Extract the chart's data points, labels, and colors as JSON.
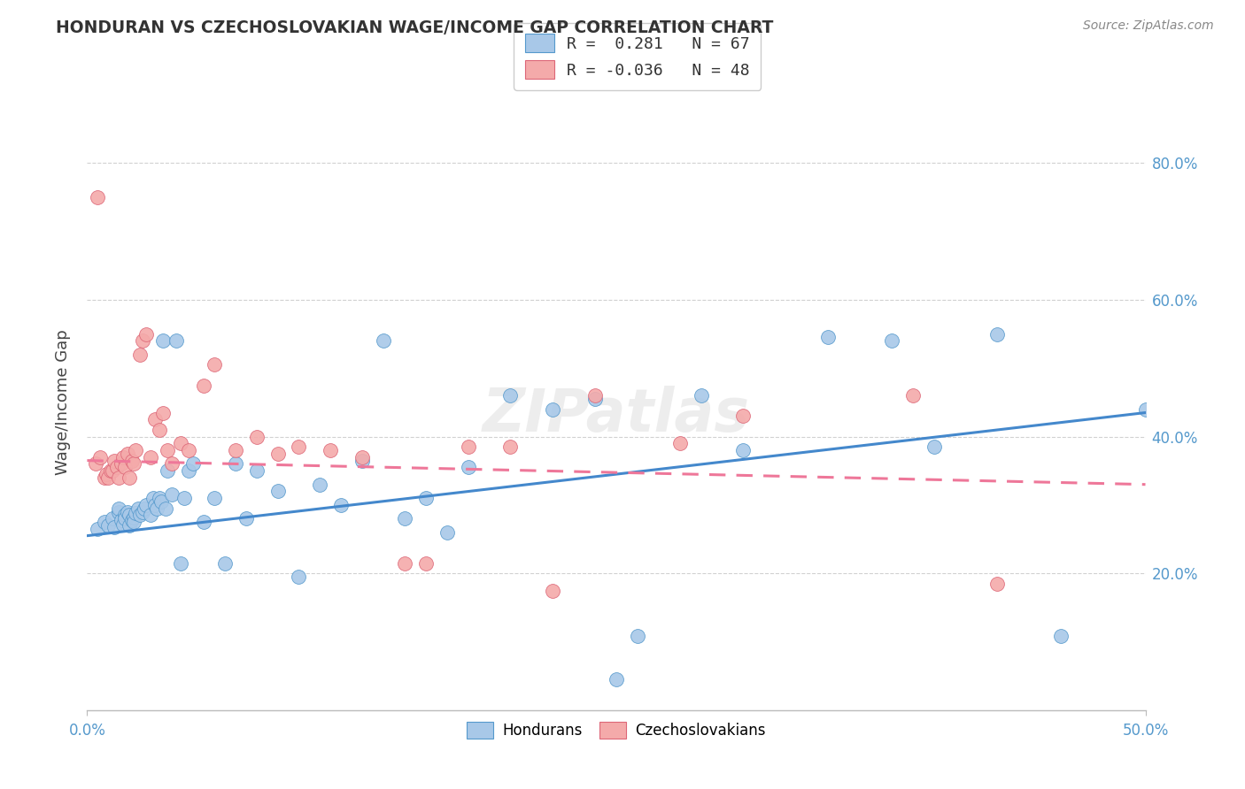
{
  "title": "HONDURAN VS CZECHOSLOVAKIAN WAGE/INCOME GAP CORRELATION CHART",
  "source": "Source: ZipAtlas.com",
  "ylabel": "Wage/Income Gap",
  "xlim": [
    0.0,
    0.5
  ],
  "ylim": [
    0.0,
    0.9
  ],
  "ytick_vals": [
    0.2,
    0.4,
    0.6,
    0.8
  ],
  "ytick_labels": [
    "20.0%",
    "40.0%",
    "60.0%",
    "80.0%"
  ],
  "blue_fill": "#A8C8E8",
  "blue_edge": "#5599CC",
  "pink_fill": "#F4AAAA",
  "pink_edge": "#DD6677",
  "blue_line_color": "#4488CC",
  "pink_line_color": "#EE7799",
  "grid_color": "#CCCCCC",
  "title_color": "#333333",
  "axis_color": "#5599CC",
  "blue_line_x0": 0.0,
  "blue_line_y0": 0.255,
  "blue_line_x1": 0.5,
  "blue_line_y1": 0.435,
  "pink_line_x0": 0.0,
  "pink_line_y0": 0.365,
  "pink_line_x1": 0.5,
  "pink_line_y1": 0.33,
  "blue_x": [
    0.005,
    0.008,
    0.01,
    0.012,
    0.013,
    0.015,
    0.015,
    0.016,
    0.017,
    0.018,
    0.018,
    0.019,
    0.02,
    0.02,
    0.021,
    0.022,
    0.022,
    0.023,
    0.024,
    0.025,
    0.026,
    0.027,
    0.028,
    0.03,
    0.031,
    0.032,
    0.033,
    0.034,
    0.035,
    0.036,
    0.037,
    0.038,
    0.04,
    0.042,
    0.044,
    0.046,
    0.048,
    0.05,
    0.055,
    0.06,
    0.065,
    0.07,
    0.075,
    0.08,
    0.09,
    0.1,
    0.11,
    0.12,
    0.13,
    0.14,
    0.15,
    0.16,
    0.17,
    0.18,
    0.2,
    0.22,
    0.24,
    0.26,
    0.29,
    0.31,
    0.35,
    0.38,
    0.4,
    0.43,
    0.46,
    0.5,
    0.25
  ],
  "blue_y": [
    0.265,
    0.275,
    0.27,
    0.28,
    0.268,
    0.29,
    0.295,
    0.278,
    0.272,
    0.285,
    0.28,
    0.29,
    0.27,
    0.285,
    0.278,
    0.282,
    0.275,
    0.288,
    0.295,
    0.285,
    0.29,
    0.295,
    0.3,
    0.285,
    0.31,
    0.3,
    0.295,
    0.31,
    0.305,
    0.54,
    0.295,
    0.35,
    0.315,
    0.54,
    0.215,
    0.31,
    0.35,
    0.36,
    0.275,
    0.31,
    0.215,
    0.36,
    0.28,
    0.35,
    0.32,
    0.195,
    0.33,
    0.3,
    0.365,
    0.54,
    0.28,
    0.31,
    0.26,
    0.355,
    0.46,
    0.44,
    0.455,
    0.108,
    0.46,
    0.38,
    0.545,
    0.54,
    0.385,
    0.55,
    0.108,
    0.44,
    0.045
  ],
  "pink_x": [
    0.004,
    0.005,
    0.006,
    0.008,
    0.009,
    0.01,
    0.011,
    0.012,
    0.013,
    0.014,
    0.015,
    0.016,
    0.017,
    0.018,
    0.019,
    0.02,
    0.021,
    0.022,
    0.023,
    0.025,
    0.026,
    0.028,
    0.03,
    0.032,
    0.034,
    0.036,
    0.038,
    0.04,
    0.044,
    0.048,
    0.055,
    0.06,
    0.07,
    0.08,
    0.09,
    0.1,
    0.115,
    0.13,
    0.15,
    0.16,
    0.18,
    0.2,
    0.22,
    0.24,
    0.28,
    0.31,
    0.39,
    0.43
  ],
  "pink_y": [
    0.36,
    0.75,
    0.37,
    0.34,
    0.345,
    0.34,
    0.35,
    0.35,
    0.365,
    0.355,
    0.34,
    0.36,
    0.37,
    0.355,
    0.375,
    0.34,
    0.365,
    0.36,
    0.38,
    0.52,
    0.54,
    0.55,
    0.37,
    0.425,
    0.41,
    0.435,
    0.38,
    0.36,
    0.39,
    0.38,
    0.475,
    0.505,
    0.38,
    0.4,
    0.375,
    0.385,
    0.38,
    0.37,
    0.215,
    0.215,
    0.385,
    0.385,
    0.175,
    0.46,
    0.39,
    0.43,
    0.46,
    0.185
  ]
}
